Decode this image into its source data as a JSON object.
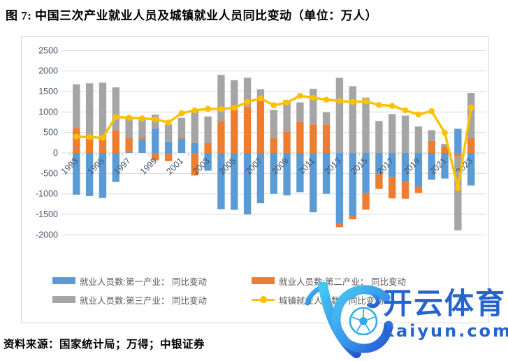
{
  "title": "图 7:  中国三次产业就业人员及城镇就业人员同比变动（单位：万人）",
  "source": "资料来源：国家统计局；万得；中银证券",
  "watermark": {
    "brand": "开云体育",
    "domain": "kaiyun.com",
    "color": "#1a5cc8"
  },
  "chart_data": {
    "type": "bar",
    "subtype": "stacked-bar-with-line",
    "categories": [
      1993,
      1994,
      1995,
      1996,
      1997,
      1998,
      1999,
      2000,
      2001,
      2002,
      2003,
      2004,
      2005,
      2006,
      2007,
      2008,
      2009,
      2010,
      2011,
      2012,
      2013,
      2014,
      2015,
      2016,
      2017,
      2018,
      2019,
      2020,
      2021,
      2022,
      2023
    ],
    "bar_series": [
      {
        "name": "就业人员数:第一产业： 同比变动",
        "color": "#5B9BD5",
        "values": [
          -1020,
          -1055,
          -1100,
          -710,
          20,
          335,
          590,
          275,
          352,
          240,
          -435,
          -1375,
          -1390,
          -1500,
          -1230,
          -1000,
          -1035,
          -960,
          -1450,
          -1000,
          -1720,
          -1535,
          -985,
          -515,
          -585,
          -690,
          -825,
          -655,
          -625,
          590,
          -795
        ]
      },
      {
        "name": "就业人员数:第二产业： 同比变动",
        "color": "#ED7D31",
        "values": [
          610,
          345,
          345,
          550,
          345,
          55,
          -180,
          -200,
          25,
          -550,
          245,
          780,
          1055,
          1130,
          1290,
          360,
          525,
          760,
          695,
          695,
          -95,
          -85,
          -400,
          -365,
          -525,
          -430,
          -150,
          290,
          155,
          -90,
          370
        ]
      },
      {
        "name": "就业人员数:第三产业： 同比变动",
        "color": "#A5A5A5",
        "values": [
          1065,
          1355,
          1370,
          1050,
          505,
          430,
          345,
          420,
          480,
          795,
          645,
          1125,
          720,
          705,
          265,
          690,
          770,
          475,
          870,
          295,
          1835,
          1630,
          1350,
          780,
          950,
          910,
          645,
          265,
          65,
          -1800,
          1095
        ]
      }
    ],
    "line_series": {
      "name": "城镇就业人员数：同比变动",
      "color": "#FFC000",
      "values": [
        400,
        385,
        370,
        880,
        860,
        845,
        820,
        745,
        970,
        1040,
        1075,
        1070,
        1100,
        1245,
        1330,
        1165,
        1230,
        1395,
        1345,
        1300,
        1270,
        1245,
        1260,
        1170,
        1150,
        1040,
        940,
        1020,
        490,
        -855,
        1110
      ]
    },
    "ylim": [
      -2000,
      2500
    ],
    "ytick_step": 500,
    "yticks": [
      "2500",
      "2000",
      "1500",
      "1000",
      "500",
      "0",
      "-500",
      "-1000",
      "-1500",
      "-2000"
    ],
    "xtick_labels_shown": [
      "1993",
      "1995",
      "1997",
      "1999",
      "2001",
      "2003",
      "2005",
      "2007",
      "2009",
      "2011",
      "2013",
      "2015",
      "2017",
      "2019",
      "2021",
      "2023"
    ],
    "grid": true,
    "legend_position": "bottom",
    "gridline_color": "#d9d9d9",
    "tick_label_color": "#44546A"
  }
}
